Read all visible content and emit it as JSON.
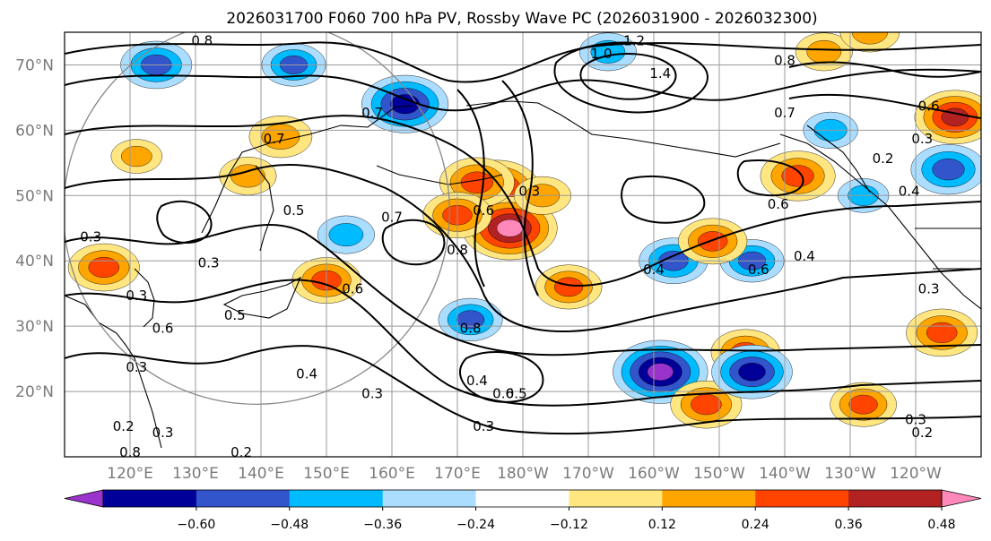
{
  "title": "2026031700 F060 700 hPa PV, Rossby Wave PC (2026031900 - 2026032300)",
  "map": {
    "lat_range": [
      10,
      75
    ],
    "lon_range": [
      110,
      250
    ],
    "lat_ticks": [
      {
        "lat": 70,
        "label": "70°N"
      },
      {
        "lat": 60,
        "label": "60°N"
      },
      {
        "lat": 50,
        "label": "50°N"
      },
      {
        "lat": 40,
        "label": "40°N"
      },
      {
        "lat": 30,
        "label": "30°N"
      },
      {
        "lat": 20,
        "label": "20°N"
      }
    ],
    "lon_ticks": [
      {
        "lon": 120,
        "label": "120°E"
      },
      {
        "lon": 130,
        "label": "130°E"
      },
      {
        "lon": 140,
        "label": "140°E"
      },
      {
        "lon": 150,
        "label": "150°E"
      },
      {
        "lon": 160,
        "label": "160°E"
      },
      {
        "lon": 170,
        "label": "170°E"
      },
      {
        "lon": 180,
        "label": "180°W"
      },
      {
        "lon": 190,
        "label": "170°W"
      },
      {
        "lon": 200,
        "label": "160°W"
      },
      {
        "lon": 210,
        "label": "150°W"
      },
      {
        "lon": 220,
        "label": "140°W"
      },
      {
        "lon": 230,
        "label": "130°W"
      },
      {
        "lon": 240,
        "label": "120°W"
      }
    ],
    "contour_labels": [
      {
        "text": "0.8",
        "lon": 131,
        "lat": 73
      },
      {
        "text": "1.0",
        "lon": 192,
        "lat": 71
      },
      {
        "text": "1.2",
        "lon": 197,
        "lat": 73
      },
      {
        "text": "1.4",
        "lon": 201,
        "lat": 68
      },
      {
        "text": "0.8",
        "lon": 220,
        "lat": 70
      },
      {
        "text": "0.7",
        "lon": 157,
        "lat": 62
      },
      {
        "text": "0.7",
        "lon": 142,
        "lat": 58
      },
      {
        "text": "0.7",
        "lon": 220,
        "lat": 62
      },
      {
        "text": "0.6",
        "lon": 242,
        "lat": 63
      },
      {
        "text": "0.3",
        "lon": 241,
        "lat": 58
      },
      {
        "text": "0.2",
        "lon": 235,
        "lat": 55
      },
      {
        "text": "0.4",
        "lon": 239,
        "lat": 50
      },
      {
        "text": "0.6",
        "lon": 219,
        "lat": 48
      },
      {
        "text": "0.3",
        "lon": 114,
        "lat": 43
      },
      {
        "text": "0.3",
        "lon": 132,
        "lat": 39
      },
      {
        "text": "0.5",
        "lon": 145,
        "lat": 47
      },
      {
        "text": "0.7",
        "lon": 160,
        "lat": 46
      },
      {
        "text": "0.6",
        "lon": 174,
        "lat": 47
      },
      {
        "text": "0.8",
        "lon": 170,
        "lat": 41
      },
      {
        "text": "0.3",
        "lon": 181,
        "lat": 50
      },
      {
        "text": "0.6",
        "lon": 154,
        "lat": 35
      },
      {
        "text": "0.3",
        "lon": 121,
        "lat": 34
      },
      {
        "text": "0.6",
        "lon": 125,
        "lat": 29
      },
      {
        "text": "0.5",
        "lon": 136,
        "lat": 31
      },
      {
        "text": "0.3",
        "lon": 121,
        "lat": 23
      },
      {
        "text": "0.4",
        "lon": 147,
        "lat": 22
      },
      {
        "text": "0.3",
        "lon": 157,
        "lat": 19
      },
      {
        "text": "0.8",
        "lon": 172,
        "lat": 29
      },
      {
        "text": "0.4",
        "lon": 173,
        "lat": 21
      },
      {
        "text": "0.6",
        "lon": 177,
        "lat": 19
      },
      {
        "text": "0.5",
        "lon": 179,
        "lat": 19
      },
      {
        "text": "0.3",
        "lon": 174,
        "lat": 14
      },
      {
        "text": "0.2",
        "lon": 137,
        "lat": 10
      },
      {
        "text": "0.2",
        "lon": 119,
        "lat": 14
      },
      {
        "text": "0.3",
        "lon": 125,
        "lat": 13
      },
      {
        "text": "0.8",
        "lon": 120,
        "lat": 10
      },
      {
        "text": "0.4",
        "lon": 200,
        "lat": 38
      },
      {
        "text": "0.6",
        "lon": 216,
        "lat": 38
      },
      {
        "text": "0.4",
        "lon": 223,
        "lat": 40
      },
      {
        "text": "0.3",
        "lon": 242,
        "lat": 35
      },
      {
        "text": "0.3",
        "lon": 240,
        "lat": 15
      },
      {
        "text": "0.2",
        "lon": 241,
        "lat": 13
      }
    ],
    "anomalies": [
      {
        "lon": 124,
        "lat": 70,
        "value": -0.42
      },
      {
        "lon": 162,
        "lat": 64,
        "value": -0.55
      },
      {
        "lon": 145,
        "lat": 70,
        "value": -0.36
      },
      {
        "lon": 176,
        "lat": 51,
        "value": 0.55
      },
      {
        "lon": 178,
        "lat": 45,
        "value": 0.62
      },
      {
        "lon": 173,
        "lat": 52,
        "value": 0.45
      },
      {
        "lon": 170,
        "lat": 47,
        "value": 0.4
      },
      {
        "lon": 183,
        "lat": 50,
        "value": 0.3
      },
      {
        "lon": 246,
        "lat": 62,
        "value": 0.5
      },
      {
        "lon": 245,
        "lat": 54,
        "value": -0.45
      },
      {
        "lon": 222,
        "lat": 53,
        "value": 0.45
      },
      {
        "lon": 203,
        "lat": 40,
        "value": -0.4
      },
      {
        "lon": 215,
        "lat": 40,
        "value": -0.36
      },
      {
        "lon": 209,
        "lat": 43,
        "value": 0.4
      },
      {
        "lon": 201,
        "lat": 23,
        "value": -0.62
      },
      {
        "lon": 208,
        "lat": 18,
        "value": 0.42
      },
      {
        "lon": 214,
        "lat": 26,
        "value": 0.4
      },
      {
        "lon": 215,
        "lat": 23,
        "value": -0.5
      },
      {
        "lon": 187,
        "lat": 36,
        "value": 0.38
      },
      {
        "lon": 172,
        "lat": 31,
        "value": -0.36
      },
      {
        "lon": 116,
        "lat": 39,
        "value": 0.42
      },
      {
        "lon": 150,
        "lat": 37,
        "value": 0.4
      },
      {
        "lon": 143,
        "lat": 59,
        "value": 0.35
      },
      {
        "lon": 138,
        "lat": 53,
        "value": 0.3
      },
      {
        "lon": 232,
        "lat": 18,
        "value": 0.38
      },
      {
        "lon": 244,
        "lat": 29,
        "value": 0.42
      },
      {
        "lon": 226,
        "lat": 72,
        "value": 0.3
      },
      {
        "lon": 227,
        "lat": 60,
        "value": -0.28
      },
      {
        "lon": 232,
        "lat": 50,
        "value": -0.25
      },
      {
        "lon": 121,
        "lat": 56,
        "value": 0.25
      },
      {
        "lon": 153,
        "lat": 44,
        "value": -0.3
      },
      {
        "lon": 193,
        "lat": 72,
        "value": -0.3
      },
      {
        "lon": 233,
        "lat": 75,
        "value": 0.32
      }
    ]
  },
  "colorbar": {
    "colors": [
      "#9933cc",
      "#000099",
      "#3355cc",
      "#00bbff",
      "#aaddff",
      "#ffffff",
      "#ffe680",
      "#ffa500",
      "#ff4400",
      "#b22222",
      "#ff88bb"
    ],
    "tick_labels": [
      "−0.60",
      "−0.48",
      "−0.36",
      "−0.24",
      "−0.12",
      "0.12",
      "0.24",
      "0.36",
      "0.48",
      "0.60"
    ],
    "levels": [
      -0.6,
      -0.48,
      -0.36,
      -0.24,
      -0.12,
      0.12,
      0.24,
      0.36,
      0.48,
      0.6
    ]
  }
}
